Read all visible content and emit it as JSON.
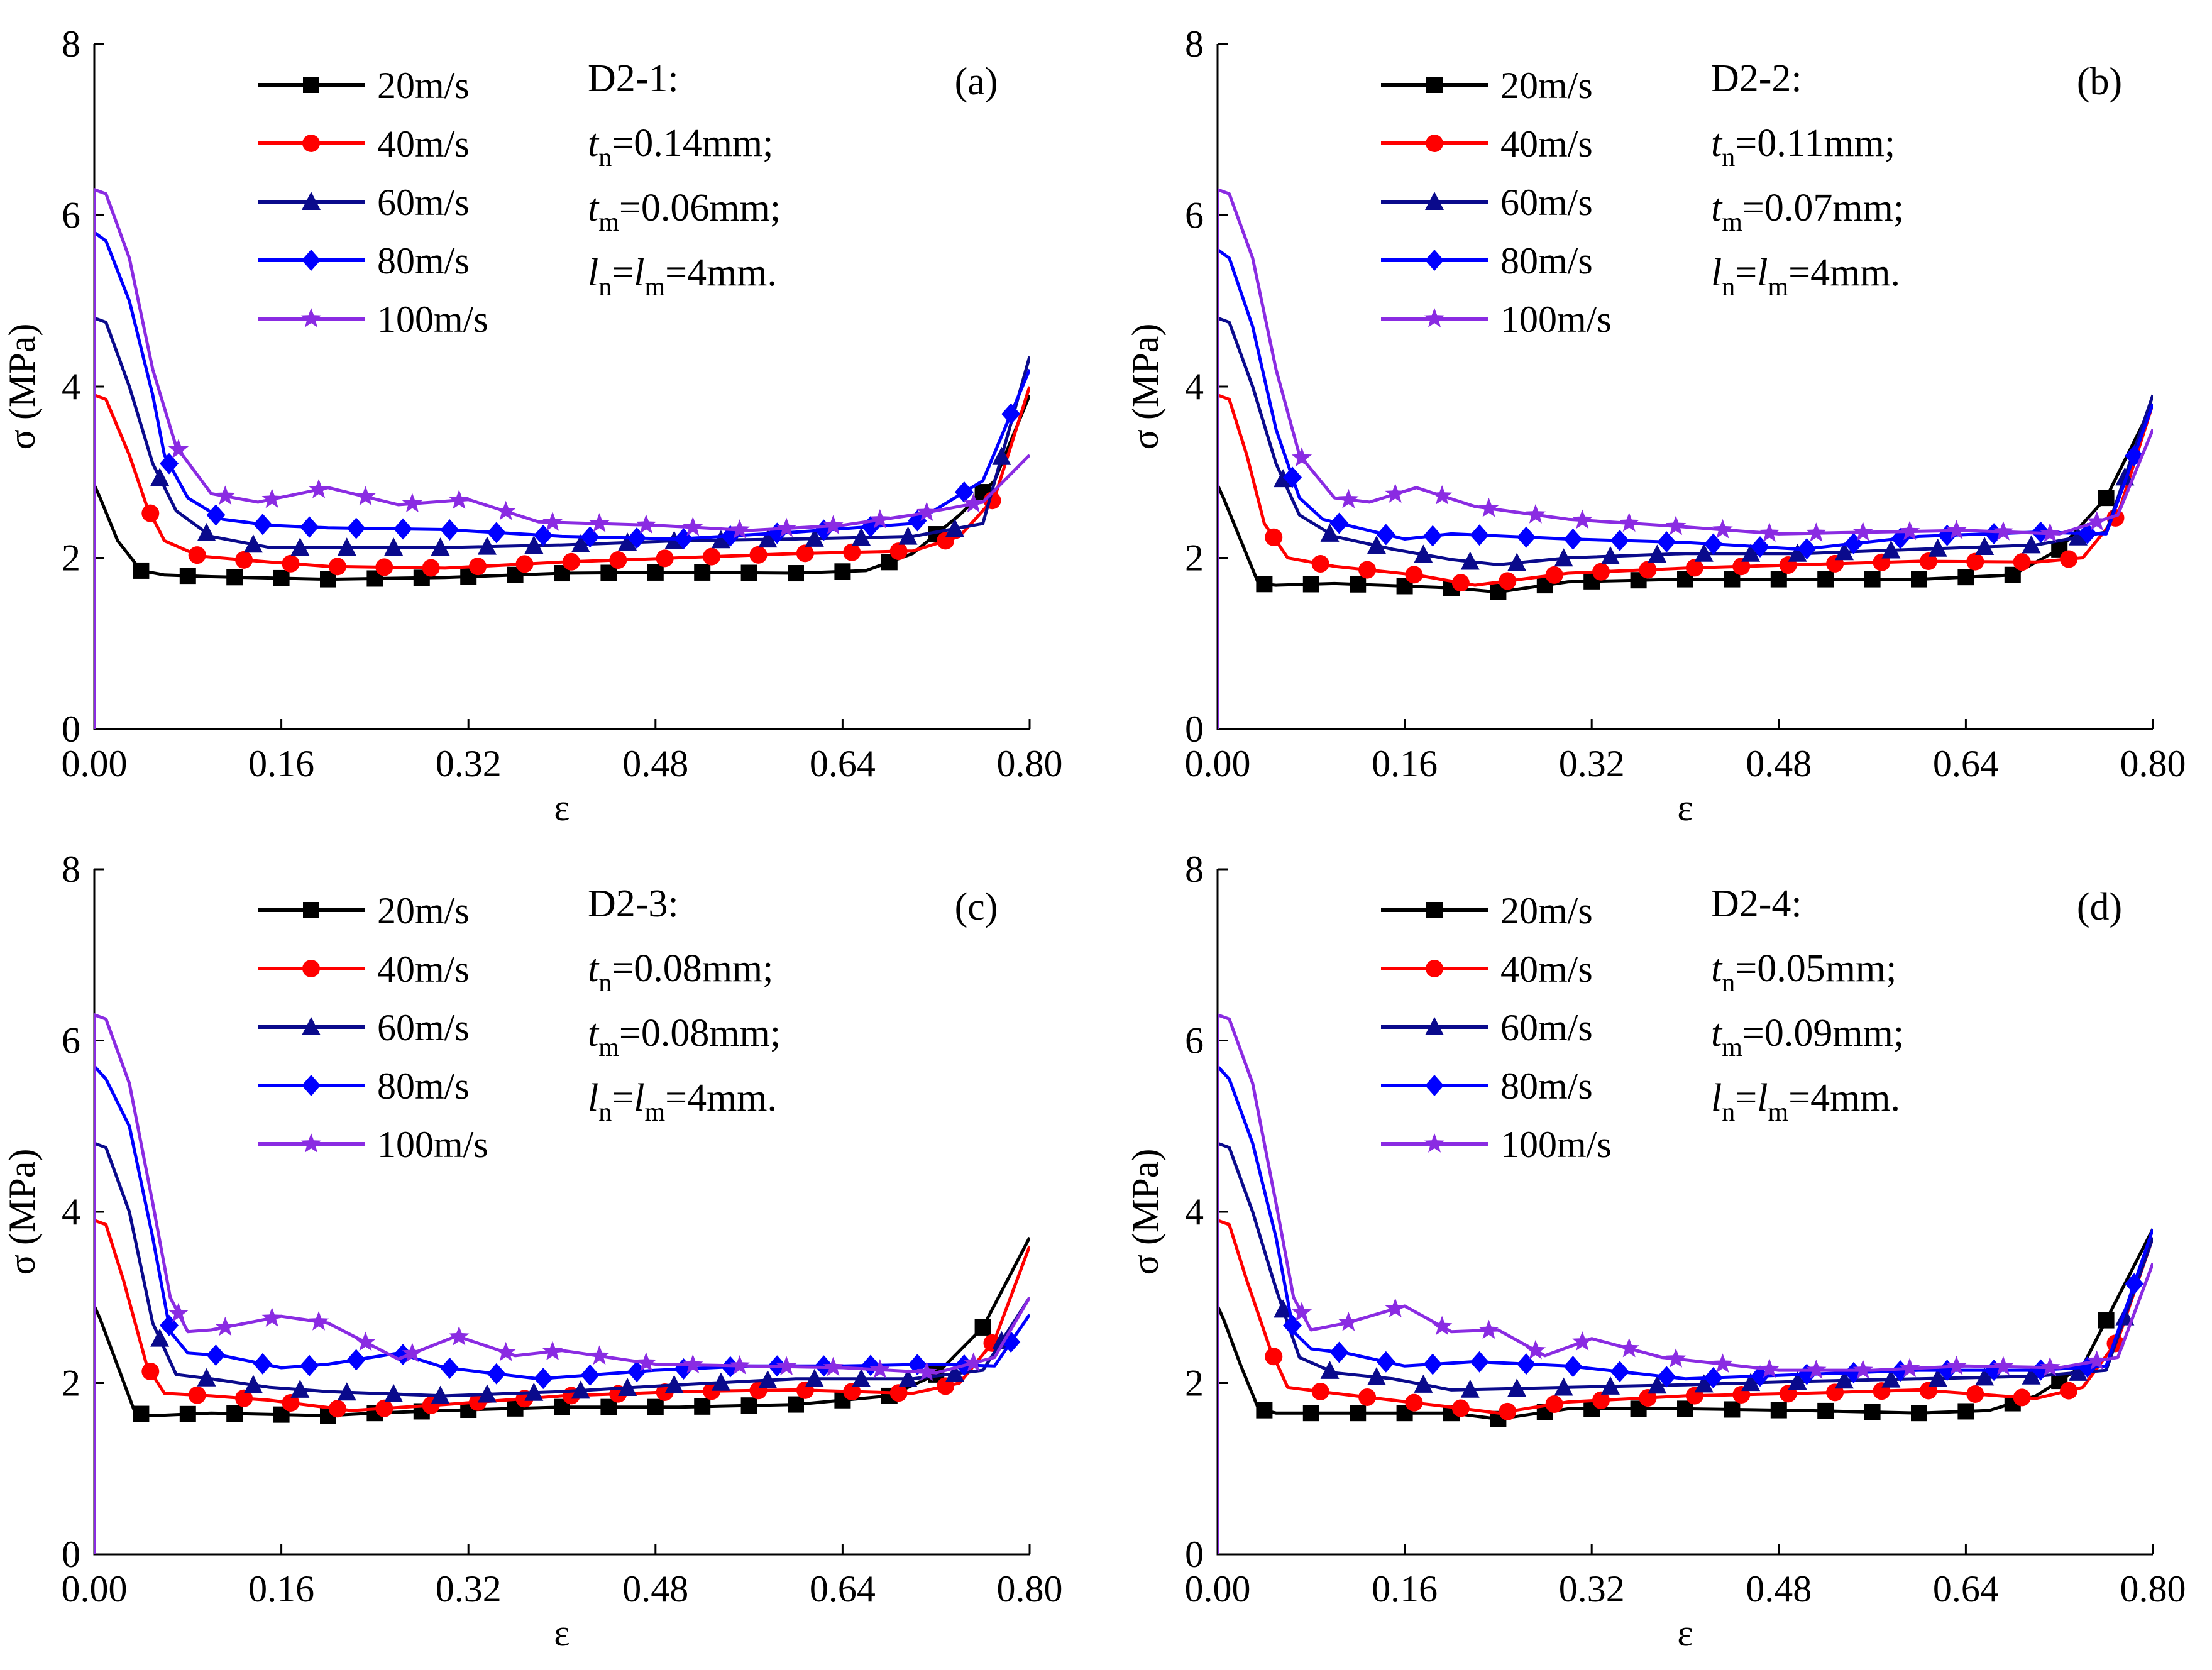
{
  "chart_data": [
    {
      "type": "line",
      "panel_label": "(a)",
      "sample": "D2-1:",
      "params": {
        "tn_letter": "t",
        "tn_sub": "n",
        "tn_value": "=0.14mm;",
        "tm_letter": "t",
        "tm_sub": "m",
        "tm_value": "=0.06mm;",
        "l1_letter": "l",
        "l1_sub": "n",
        "l_eq": "=",
        "l2_letter": "l",
        "l2_sub": "m",
        "l_value": "=4mm."
      },
      "xlabel": "ε",
      "ylabel": "σ (MPa)",
      "xlim": [
        0,
        0.8
      ],
      "ylim": [
        0,
        8
      ],
      "xticks": [
        "0.00",
        "0.16",
        "0.32",
        "0.48",
        "0.64",
        "0.80"
      ],
      "yticks": [
        "0",
        "2",
        "4",
        "6",
        "8"
      ],
      "legend_position": "top-left",
      "series": [
        {
          "name": "20m/s",
          "color": "#000000",
          "marker": "square",
          "x": [
            0,
            0.005,
            0.02,
            0.04,
            0.06,
            0.1,
            0.2,
            0.3,
            0.4,
            0.5,
            0.6,
            0.66,
            0.7,
            0.74,
            0.77,
            0.8
          ],
          "y": [
            2.85,
            2.7,
            2.2,
            1.85,
            1.8,
            1.78,
            1.75,
            1.77,
            1.82,
            1.83,
            1.82,
            1.85,
            2.05,
            2.5,
            2.9,
            3.9
          ]
        },
        {
          "name": "40m/s",
          "color": "#ff0000",
          "marker": "circle",
          "x": [
            0,
            0.01,
            0.03,
            0.045,
            0.06,
            0.09,
            0.15,
            0.2,
            0.3,
            0.4,
            0.5,
            0.6,
            0.7,
            0.74,
            0.77,
            0.8
          ],
          "y": [
            3.9,
            3.85,
            3.2,
            2.6,
            2.2,
            2.02,
            1.95,
            1.9,
            1.88,
            1.95,
            2.0,
            2.05,
            2.08,
            2.25,
            2.7,
            4.0
          ]
        },
        {
          "name": "60m/s",
          "color": "#0a0a8c",
          "marker": "triangle",
          "x": [
            0,
            0.01,
            0.03,
            0.05,
            0.07,
            0.1,
            0.15,
            0.2,
            0.3,
            0.4,
            0.5,
            0.6,
            0.7,
            0.76,
            0.8
          ],
          "y": [
            4.8,
            4.75,
            4.0,
            3.1,
            2.55,
            2.25,
            2.12,
            2.12,
            2.12,
            2.15,
            2.2,
            2.22,
            2.25,
            2.4,
            4.35
          ]
        },
        {
          "name": "80m/s",
          "color": "#0000ff",
          "marker": "diamond",
          "x": [
            0,
            0.01,
            0.03,
            0.05,
            0.06,
            0.08,
            0.11,
            0.15,
            0.2,
            0.3,
            0.4,
            0.5,
            0.6,
            0.7,
            0.76,
            0.8
          ],
          "y": [
            5.8,
            5.7,
            5.0,
            3.9,
            3.2,
            2.7,
            2.45,
            2.38,
            2.35,
            2.33,
            2.25,
            2.22,
            2.3,
            2.4,
            2.9,
            4.2
          ]
        },
        {
          "name": "100m/s",
          "color": "#8a2be2",
          "marker": "star",
          "x": [
            0,
            0.01,
            0.03,
            0.05,
            0.07,
            0.1,
            0.14,
            0.2,
            0.26,
            0.32,
            0.38,
            0.48,
            0.56,
            0.64,
            0.7,
            0.76,
            0.8
          ],
          "y": [
            6.3,
            6.25,
            5.5,
            4.2,
            3.3,
            2.75,
            2.65,
            2.82,
            2.62,
            2.68,
            2.42,
            2.38,
            2.32,
            2.38,
            2.5,
            2.65,
            3.2
          ]
        }
      ]
    },
    {
      "type": "line",
      "panel_label": "(b)",
      "sample": "D2-2:",
      "params": {
        "tn_letter": "t",
        "tn_sub": "n",
        "tn_value": "=0.11mm;",
        "tm_letter": "t",
        "tm_sub": "m",
        "tm_value": "=0.07mm;",
        "l1_letter": "l",
        "l1_sub": "n",
        "l_eq": "=",
        "l2_letter": "l",
        "l2_sub": "m",
        "l_value": "=4mm."
      },
      "xlabel": "ε",
      "ylabel": "σ (MPa)",
      "xlim": [
        0,
        0.8
      ],
      "ylim": [
        0,
        8
      ],
      "xticks": [
        "0.00",
        "0.16",
        "0.32",
        "0.48",
        "0.64",
        "0.80"
      ],
      "yticks": [
        "0",
        "2",
        "4",
        "6",
        "8"
      ],
      "legend_position": "top-left",
      "series": [
        {
          "name": "20m/s",
          "color": "#000000",
          "marker": "square",
          "x": [
            0,
            0.005,
            0.02,
            0.035,
            0.05,
            0.1,
            0.2,
            0.24,
            0.3,
            0.4,
            0.5,
            0.6,
            0.68,
            0.72,
            0.76,
            0.8
          ],
          "y": [
            2.85,
            2.7,
            2.2,
            1.7,
            1.68,
            1.7,
            1.65,
            1.6,
            1.72,
            1.75,
            1.75,
            1.75,
            1.8,
            2.1,
            2.7,
            3.8
          ]
        },
        {
          "name": "40m/s",
          "color": "#ff0000",
          "marker": "circle",
          "x": [
            0,
            0.01,
            0.025,
            0.04,
            0.06,
            0.1,
            0.17,
            0.22,
            0.3,
            0.4,
            0.5,
            0.6,
            0.7,
            0.74,
            0.77,
            0.8
          ],
          "y": [
            3.9,
            3.85,
            3.2,
            2.4,
            2.0,
            1.9,
            1.8,
            1.68,
            1.82,
            1.88,
            1.92,
            1.96,
            1.95,
            2.0,
            2.5,
            3.8
          ]
        },
        {
          "name": "60m/s",
          "color": "#0a0a8c",
          "marker": "triangle",
          "x": [
            0,
            0.01,
            0.03,
            0.05,
            0.07,
            0.1,
            0.15,
            0.2,
            0.24,
            0.3,
            0.4,
            0.5,
            0.6,
            0.7,
            0.76,
            0.8
          ],
          "y": [
            4.8,
            4.75,
            4.0,
            3.1,
            2.5,
            2.25,
            2.1,
            1.98,
            1.92,
            2.0,
            2.05,
            2.05,
            2.1,
            2.15,
            2.3,
            3.9
          ]
        },
        {
          "name": "80m/s",
          "color": "#0000ff",
          "marker": "diamond",
          "x": [
            0,
            0.01,
            0.03,
            0.05,
            0.07,
            0.09,
            0.12,
            0.16,
            0.2,
            0.3,
            0.4,
            0.5,
            0.6,
            0.7,
            0.76,
            0.8
          ],
          "y": [
            5.6,
            5.5,
            4.7,
            3.5,
            2.7,
            2.45,
            2.35,
            2.22,
            2.28,
            2.22,
            2.18,
            2.1,
            2.25,
            2.3,
            2.28,
            3.8
          ]
        },
        {
          "name": "100m/s",
          "color": "#8a2be2",
          "marker": "star",
          "x": [
            0,
            0.01,
            0.03,
            0.05,
            0.07,
            0.1,
            0.13,
            0.17,
            0.22,
            0.3,
            0.38,
            0.48,
            0.56,
            0.64,
            0.72,
            0.77,
            0.8
          ],
          "y": [
            6.3,
            6.25,
            5.5,
            4.2,
            3.2,
            2.7,
            2.65,
            2.82,
            2.6,
            2.45,
            2.38,
            2.28,
            2.3,
            2.32,
            2.28,
            2.5,
            3.5
          ]
        }
      ]
    },
    {
      "type": "line",
      "panel_label": "(c)",
      "sample": "D2-3:",
      "params": {
        "tn_letter": "t",
        "tn_sub": "n",
        "tn_value": "=0.08mm;",
        "tm_letter": "t",
        "tm_sub": "m",
        "tm_value": "=0.08mm;",
        "l1_letter": "l",
        "l1_sub": "n",
        "l_eq": "=",
        "l2_letter": "l",
        "l2_sub": "m",
        "l_value": "=4mm."
      },
      "xlabel": "ε",
      "ylabel": "σ (MPa)",
      "xlim": [
        0,
        0.8
      ],
      "ylim": [
        0,
        8
      ],
      "xticks": [
        "0.00",
        "0.16",
        "0.32",
        "0.48",
        "0.64",
        "0.80"
      ],
      "yticks": [
        "0",
        "2",
        "4",
        "6",
        "8"
      ],
      "legend_position": "top-left",
      "series": [
        {
          "name": "20m/s",
          "color": "#000000",
          "marker": "square",
          "x": [
            0,
            0.005,
            0.02,
            0.035,
            0.05,
            0.1,
            0.2,
            0.24,
            0.3,
            0.4,
            0.5,
            0.6,
            0.68,
            0.72,
            0.76,
            0.8
          ],
          "y": [
            2.9,
            2.75,
            2.2,
            1.65,
            1.62,
            1.65,
            1.62,
            1.65,
            1.68,
            1.72,
            1.72,
            1.75,
            1.85,
            2.1,
            2.65,
            3.7
          ]
        },
        {
          "name": "40m/s",
          "color": "#ff0000",
          "marker": "circle",
          "x": [
            0,
            0.01,
            0.025,
            0.045,
            0.06,
            0.1,
            0.15,
            0.22,
            0.3,
            0.4,
            0.5,
            0.6,
            0.7,
            0.74,
            0.77,
            0.8
          ],
          "y": [
            3.9,
            3.85,
            3.2,
            2.2,
            1.88,
            1.85,
            1.8,
            1.68,
            1.75,
            1.85,
            1.9,
            1.92,
            1.88,
            2.0,
            2.5,
            3.6
          ]
        },
        {
          "name": "60m/s",
          "color": "#0a0a8c",
          "marker": "triangle",
          "x": [
            0,
            0.01,
            0.03,
            0.05,
            0.07,
            0.1,
            0.15,
            0.2,
            0.3,
            0.4,
            0.5,
            0.6,
            0.7,
            0.76,
            0.8
          ],
          "y": [
            4.8,
            4.75,
            4.0,
            2.7,
            2.1,
            2.05,
            1.95,
            1.9,
            1.85,
            1.9,
            1.98,
            2.05,
            2.05,
            2.15,
            3.0
          ]
        },
        {
          "name": "80m/s",
          "color": "#0000ff",
          "marker": "diamond",
          "x": [
            0,
            0.01,
            0.03,
            0.05,
            0.065,
            0.08,
            0.11,
            0.16,
            0.2,
            0.26,
            0.3,
            0.38,
            0.48,
            0.56,
            0.64,
            0.72,
            0.77,
            0.8
          ],
          "y": [
            5.7,
            5.55,
            5.0,
            3.7,
            2.6,
            2.35,
            2.32,
            2.18,
            2.22,
            2.35,
            2.18,
            2.05,
            2.15,
            2.2,
            2.2,
            2.22,
            2.2,
            2.8
          ]
        },
        {
          "name": "100m/s",
          "color": "#8a2be2",
          "marker": "star",
          "x": [
            0,
            0.01,
            0.03,
            0.05,
            0.065,
            0.08,
            0.1,
            0.16,
            0.2,
            0.26,
            0.31,
            0.36,
            0.4,
            0.48,
            0.56,
            0.64,
            0.72,
            0.77,
            0.8
          ],
          "y": [
            6.3,
            6.25,
            5.5,
            4.1,
            3.0,
            2.6,
            2.62,
            2.78,
            2.7,
            2.28,
            2.55,
            2.32,
            2.38,
            2.22,
            2.2,
            2.18,
            2.12,
            2.3,
            3.0
          ]
        }
      ]
    },
    {
      "type": "line",
      "panel_label": "(d)",
      "sample": "D2-4:",
      "params": {
        "tn_letter": "t",
        "tn_sub": "n",
        "tn_value": "=0.05mm;",
        "tm_letter": "t",
        "tm_sub": "m",
        "tm_value": "=0.09mm;",
        "l1_letter": "l",
        "l1_sub": "n",
        "l_eq": "=",
        "l2_letter": "l",
        "l2_sub": "m",
        "l_value": "=4mm."
      },
      "xlabel": "ε",
      "ylabel": "σ (MPa)",
      "xlim": [
        0,
        0.8
      ],
      "ylim": [
        0,
        8
      ],
      "xticks": [
        "0.00",
        "0.16",
        "0.32",
        "0.48",
        "0.64",
        "0.80"
      ],
      "yticks": [
        "0",
        "2",
        "4",
        "6",
        "8"
      ],
      "legend_position": "top-left",
      "series": [
        {
          "name": "20m/s",
          "color": "#000000",
          "marker": "square",
          "x": [
            0,
            0.005,
            0.02,
            0.035,
            0.05,
            0.1,
            0.2,
            0.24,
            0.3,
            0.4,
            0.5,
            0.6,
            0.66,
            0.7,
            0.74,
            0.8
          ],
          "y": [
            2.9,
            2.75,
            2.2,
            1.7,
            1.65,
            1.65,
            1.65,
            1.58,
            1.7,
            1.7,
            1.68,
            1.65,
            1.68,
            1.85,
            2.2,
            3.8
          ]
        },
        {
          "name": "40m/s",
          "color": "#ff0000",
          "marker": "circle",
          "x": [
            0,
            0.01,
            0.025,
            0.045,
            0.06,
            0.1,
            0.15,
            0.2,
            0.24,
            0.3,
            0.4,
            0.5,
            0.6,
            0.7,
            0.74,
            0.77,
            0.8
          ],
          "y": [
            3.9,
            3.85,
            3.2,
            2.4,
            1.95,
            1.88,
            1.8,
            1.72,
            1.65,
            1.78,
            1.85,
            1.88,
            1.92,
            1.82,
            1.95,
            2.5,
            3.7
          ]
        },
        {
          "name": "60m/s",
          "color": "#0a0a8c",
          "marker": "triangle",
          "x": [
            0,
            0.01,
            0.03,
            0.05,
            0.07,
            0.1,
            0.15,
            0.2,
            0.3,
            0.4,
            0.5,
            0.6,
            0.7,
            0.76,
            0.8
          ],
          "y": [
            4.8,
            4.75,
            4.0,
            3.1,
            2.3,
            2.12,
            2.05,
            1.92,
            1.95,
            1.98,
            2.02,
            2.05,
            2.08,
            2.15,
            3.7
          ]
        },
        {
          "name": "80m/s",
          "color": "#0000ff",
          "marker": "diamond",
          "x": [
            0,
            0.01,
            0.03,
            0.05,
            0.065,
            0.08,
            0.11,
            0.16,
            0.22,
            0.3,
            0.4,
            0.5,
            0.6,
            0.7,
            0.76,
            0.8
          ],
          "y": [
            5.7,
            5.55,
            4.8,
            3.7,
            2.6,
            2.4,
            2.35,
            2.2,
            2.25,
            2.2,
            2.05,
            2.1,
            2.15,
            2.15,
            2.2,
            3.8
          ]
        },
        {
          "name": "100m/s",
          "color": "#8a2be2",
          "marker": "star",
          "x": [
            0,
            0.01,
            0.03,
            0.05,
            0.065,
            0.08,
            0.11,
            0.16,
            0.2,
            0.24,
            0.28,
            0.32,
            0.38,
            0.48,
            0.56,
            0.64,
            0.72,
            0.77,
            0.8
          ],
          "y": [
            6.3,
            6.25,
            5.5,
            4.1,
            3.0,
            2.62,
            2.7,
            2.9,
            2.6,
            2.62,
            2.32,
            2.52,
            2.3,
            2.15,
            2.15,
            2.2,
            2.18,
            2.3,
            3.4
          ]
        }
      ]
    }
  ]
}
